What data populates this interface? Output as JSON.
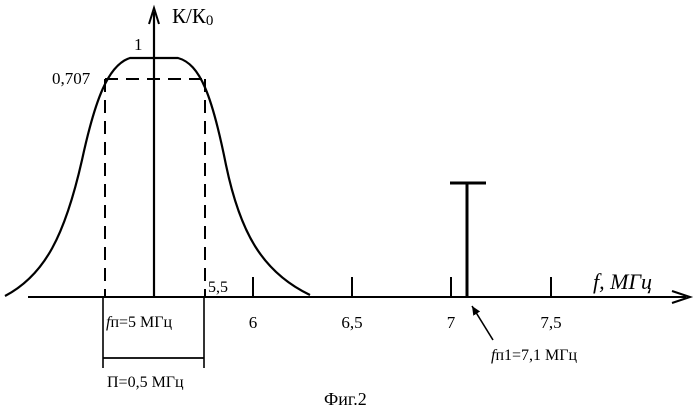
{
  "figure": {
    "y_axis_label": "К/К",
    "y_axis_label_sub": "0",
    "peak_label": "1",
    "level_label": "0,707",
    "x_axis_label": "f, МГц",
    "x_ticks": [
      "5,5",
      "6",
      "6,5",
      "7",
      "7,5"
    ],
    "fc_label_f": "f",
    "fc_label_rest": "п=5 МГц",
    "fi_label_f": "f",
    "fi_label_rest": "п1=7,1 МГц",
    "bandwidth_label": "П=0,5 МГц",
    "caption": "Фиг.2"
  },
  "chart_data": {
    "type": "line",
    "xlabel": "f, МГц",
    "ylabel": "К/К0",
    "x_tick_values": [
      5.5,
      6,
      6.5,
      7,
      7.5
    ],
    "passband": {
      "center_freq": 5.0,
      "peak_level": 1,
      "cutoff_level": 0.707,
      "cutoff_freqs": [
        4.75,
        5.25
      ],
      "bandwidth": 0.5
    },
    "interference": {
      "freq": 7.1
    }
  }
}
